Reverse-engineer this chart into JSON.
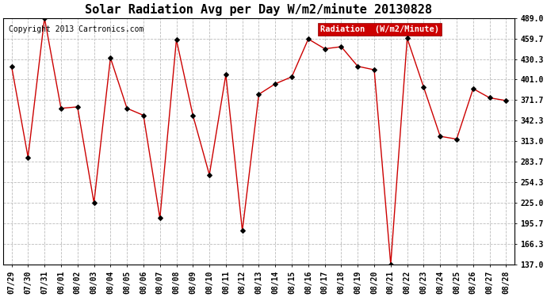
{
  "title": "Solar Radiation Avg per Day W/m2/minute 20130828",
  "copyright": "Copyright 2013 Cartronics.com",
  "legend_label": "Radiation  (W/m2/Minute)",
  "dates": [
    "07/29",
    "07/30",
    "07/31",
    "08/01",
    "08/02",
    "08/03",
    "08/04",
    "08/05",
    "08/06",
    "08/07",
    "08/08",
    "08/09",
    "08/10",
    "08/11",
    "08/12",
    "08/13",
    "08/14",
    "08/15",
    "08/16",
    "08/17",
    "08/18",
    "08/19",
    "08/20",
    "08/21",
    "08/22",
    "08/23",
    "08/24",
    "08/25",
    "08/26",
    "08/27",
    "08/28"
  ],
  "values": [
    420.0,
    290.0,
    489.0,
    360.0,
    362.0,
    225.0,
    432.0,
    360.0,
    350.0,
    203.0,
    458.0,
    350.0,
    265.0,
    408.0,
    185.0,
    380.0,
    395.0,
    405.0,
    459.0,
    445.0,
    448.0,
    420.0,
    415.0,
    137.0,
    460.0,
    390.0,
    320.0,
    316.0,
    388.0,
    375.0,
    371.0
  ],
  "ylim_min": 137.0,
  "ylim_max": 489.0,
  "yticks": [
    137.0,
    166.3,
    195.7,
    225.0,
    254.3,
    283.7,
    313.0,
    342.3,
    371.7,
    401.0,
    430.3,
    459.7,
    489.0
  ],
  "line_color": "#cc0000",
  "marker_color": "#000000",
  "background_color": "#ffffff",
  "grid_color": "#bbbbbb",
  "legend_bg": "#cc0000",
  "legend_text_color": "#ffffff",
  "title_fontsize": 11,
  "copyright_fontsize": 7,
  "tick_fontsize": 7,
  "legend_fontsize": 7.5
}
